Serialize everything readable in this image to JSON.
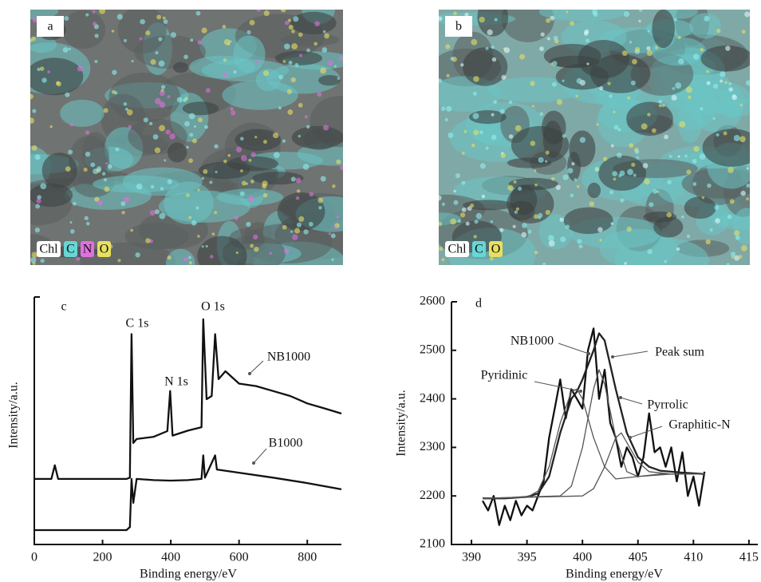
{
  "images": [
    {
      "label": "a",
      "legend": [
        {
          "text": "Chl",
          "color": "#ffffff"
        },
        {
          "text": "C",
          "color": "#66d6d6"
        },
        {
          "text": "N",
          "color": "#e070e0"
        },
        {
          "text": "O",
          "color": "#e8e060"
        }
      ]
    },
    {
      "label": "b",
      "legend": [
        {
          "text": "Chl",
          "color": "#ffffff"
        },
        {
          "text": "C",
          "color": "#66d6d6"
        },
        {
          "text": "O",
          "color": "#e8e060"
        }
      ]
    }
  ],
  "chart_data": [
    {
      "type": "line",
      "panel": "c",
      "xlabel": "Binding energy/eV",
      "ylabel": "Intensity/a.u.",
      "xlim": [
        0,
        900
      ],
      "xticks": [
        0,
        200,
        400,
        600,
        800
      ],
      "ylim": [
        0,
        100
      ],
      "annotations": [
        "C 1s",
        "N 1s",
        "O 1s"
      ],
      "series": [
        {
          "name": "NB1000",
          "color": "#111111",
          "x": [
            0,
            50,
            60,
            70,
            150,
            270,
            280,
            285,
            290,
            300,
            350,
            390,
            398,
            405,
            450,
            490,
            495,
            505,
            520,
            530,
            540,
            560,
            600,
            650,
            700,
            750,
            800,
            850,
            900
          ],
          "values": [
            26.5,
            26.5,
            32,
            26.5,
            26.5,
            26.5,
            27,
            85,
            41,
            42.6,
            43.5,
            45.8,
            62,
            44,
            46,
            47.4,
            91,
            58.7,
            60,
            85,
            66.8,
            70,
            65,
            64,
            62,
            60,
            57,
            55,
            52.9
          ]
        },
        {
          "name": "B1000",
          "color": "#111111",
          "x": [
            0,
            100,
            200,
            270,
            280,
            285,
            290,
            300,
            350,
            400,
            450,
            490,
            495,
            500,
            530,
            535,
            600,
            700,
            800,
            900
          ],
          "values": [
            5.8,
            5.8,
            5.8,
            5.8,
            7,
            26.5,
            16.8,
            26.5,
            26,
            25.8,
            26,
            26.5,
            36,
            27,
            36,
            30.3,
            29,
            27,
            24.8,
            22.3
          ]
        }
      ]
    },
    {
      "type": "line",
      "panel": "d",
      "xlabel": "Binding energy/eV",
      "ylabel": "Intensity/a.u.",
      "xlim": [
        388.2,
        415.8
      ],
      "xticks": [
        390,
        395,
        400,
        405,
        410,
        415
      ],
      "ylim": [
        2100,
        2600
      ],
      "yticks": [
        2100,
        2200,
        2300,
        2400,
        2500,
        2600
      ],
      "series": [
        {
          "name": "NB1000",
          "color": "#111111",
          "x": [
            391,
            391.5,
            392,
            392.5,
            393,
            393.5,
            394,
            394.5,
            395,
            395.5,
            396,
            396.5,
            397,
            397.5,
            398,
            398.5,
            399,
            399.5,
            400,
            400.5,
            401,
            401.5,
            402,
            402.5,
            403,
            403.5,
            404,
            404.5,
            405,
            405.5,
            406,
            406.5,
            407,
            407.5,
            408,
            408.5,
            409,
            409.5,
            410,
            410.5,
            411
          ],
          "values": [
            2190,
            2170,
            2200,
            2140,
            2180,
            2150,
            2190,
            2160,
            2180,
            2170,
            2200,
            2230,
            2320,
            2380,
            2440,
            2360,
            2420,
            2400,
            2380,
            2500,
            2545,
            2400,
            2460,
            2350,
            2320,
            2260,
            2300,
            2280,
            2240,
            2280,
            2370,
            2290,
            2300,
            2260,
            2300,
            2230,
            2290,
            2200,
            2240,
            2180,
            2250
          ]
        },
        {
          "name": "Peak sum",
          "color": "#222222",
          "x": [
            391,
            393,
            395,
            396,
            397,
            398,
            399,
            399.5,
            400,
            401,
            401.5,
            402,
            403,
            404,
            405,
            406,
            407,
            409,
            411
          ],
          "values": [
            2195,
            2195,
            2198,
            2205,
            2240,
            2330,
            2400,
            2415,
            2440,
            2500,
            2535,
            2520,
            2420,
            2330,
            2280,
            2260,
            2252,
            2248,
            2245
          ]
        },
        {
          "name": "Pyridinic",
          "color": "#555555",
          "x": [
            391,
            395,
            396,
            397,
            398,
            399,
            399.5,
            400,
            401,
            402,
            403,
            405,
            408,
            411
          ],
          "values": [
            2195,
            2197,
            2210,
            2260,
            2350,
            2415,
            2420,
            2400,
            2320,
            2260,
            2235,
            2240,
            2245,
            2245
          ]
        },
        {
          "name": "Pyrrolic",
          "color": "#555555",
          "x": [
            391,
            398,
            399,
            400,
            401,
            401.5,
            402,
            403,
            404,
            405,
            407,
            411
          ],
          "values": [
            2195,
            2200,
            2220,
            2300,
            2420,
            2460,
            2430,
            2320,
            2250,
            2240,
            2245,
            2245
          ]
        },
        {
          "name": "Graphitic-N",
          "color": "#555555",
          "x": [
            391,
            400,
            401,
            402,
            403,
            403.5,
            404,
            405,
            406,
            408,
            411
          ],
          "values": [
            2195,
            2200,
            2215,
            2260,
            2320,
            2330,
            2310,
            2270,
            2250,
            2245,
            2245
          ]
        }
      ]
    }
  ]
}
